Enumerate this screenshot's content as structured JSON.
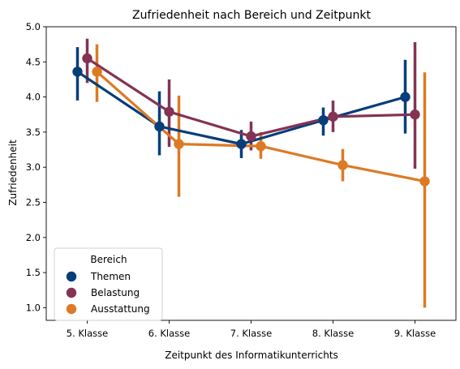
{
  "chart_data": {
    "type": "point",
    "title": "Zufriedenheit nach Bereich und Zeitpunkt",
    "xlabel": "Zeitpunkt des Informatikunterrichts",
    "ylabel": "Zufriedenheit",
    "categories": [
      "5. Klasse",
      "6. Klasse",
      "7. Klasse",
      "8. Klasse",
      "9. Klasse"
    ],
    "ylim": [
      0.82,
      5.0
    ],
    "yticks": [
      "1.0",
      "1.5",
      "2.0",
      "2.5",
      "3.0",
      "3.5",
      "4.0",
      "4.5",
      "5.0"
    ],
    "grid": false,
    "legend": {
      "title": "Bereich",
      "placement": "lower-left"
    },
    "series": [
      {
        "name": "Themen",
        "color": "#053e7a",
        "values": [
          4.36,
          3.58,
          3.33,
          3.67,
          4.0
        ],
        "ci_low": [
          3.95,
          3.17,
          3.13,
          3.45,
          3.48
        ],
        "ci_high": [
          4.71,
          4.08,
          3.53,
          3.85,
          4.53
        ]
      },
      {
        "name": "Belastung",
        "color": "#843353",
        "values": [
          4.55,
          3.79,
          3.44,
          3.72,
          3.75
        ],
        "ci_low": [
          4.2,
          3.29,
          3.24,
          3.5,
          2.98
        ],
        "ci_high": [
          4.83,
          4.25,
          3.65,
          3.95,
          4.78
        ]
      },
      {
        "name": "Ausstattung",
        "color": "#dc7a25",
        "values": [
          4.36,
          3.33,
          3.3,
          3.03,
          2.8
        ],
        "ci_low": [
          3.93,
          2.58,
          3.12,
          2.8,
          1.0
        ],
        "ci_high": [
          4.75,
          4.02,
          3.5,
          3.26,
          4.35
        ]
      }
    ]
  }
}
